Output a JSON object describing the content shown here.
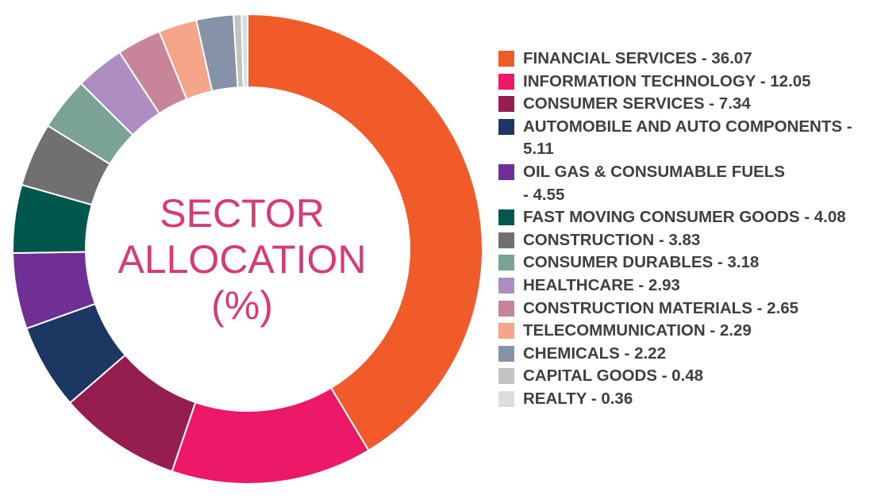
{
  "chart_data": {
    "type": "pie",
    "variant": "donut",
    "title_lines": [
      "SECTOR",
      "ALLOCATION",
      "(%)"
    ],
    "legend_position": "right",
    "slices": [
      {
        "label": "FINANCIAL SERVICES - 36.07",
        "name": "FINANCIAL SERVICES",
        "value": 36.07,
        "color": "#f15a29"
      },
      {
        "label": "INFORMATION TECHNOLOGY - 12.05",
        "name": "INFORMATION TECHNOLOGY",
        "value": 12.05,
        "color": "#ec1868"
      },
      {
        "label": "CONSUMER SERVICES - 7.34",
        "name": "CONSUMER SERVICES",
        "value": 7.34,
        "color": "#951d4f"
      },
      {
        "label": "AUTOMOBILE AND AUTO COMPONENTS - 5.11",
        "name": "AUTOMOBILE AND AUTO COMPONENTS",
        "value": 5.11,
        "color": "#1b3762"
      },
      {
        "label": "OIL GAS & CONSUMABLE FUELS\n- 4.55",
        "name": "OIL GAS & CONSUMABLE FUELS",
        "value": 4.55,
        "color": "#702f94"
      },
      {
        "label": "FAST MOVING CONSUMER GOODS - 4.08",
        "name": "FAST MOVING CONSUMER GOODS",
        "value": 4.08,
        "color": "#00574b"
      },
      {
        "label": "CONSTRUCTION - 3.83",
        "name": "CONSTRUCTION",
        "value": 3.83,
        "color": "#707070"
      },
      {
        "label": "CONSUMER DURABLES - 3.18",
        "name": "CONSUMER DURABLES",
        "value": 3.18,
        "color": "#7aa396"
      },
      {
        "label": "HEALTHCARE - 2.93",
        "name": "HEALTHCARE",
        "value": 2.93,
        "color": "#ae8ec2"
      },
      {
        "label": "CONSTRUCTION MATERIALS - 2.65",
        "name": "CONSTRUCTION MATERIALS",
        "value": 2.65,
        "color": "#c88499"
      },
      {
        "label": "TELECOMMUNICATION - 2.29",
        "name": "TELECOMMUNICATION",
        "value": 2.29,
        "color": "#f6a589"
      },
      {
        "label": "CHEMICALS - 2.22",
        "name": "CHEMICALS",
        "value": 2.22,
        "color": "#8592a8"
      },
      {
        "label": "CAPITAL GOODS - 0.48",
        "name": "CAPITAL GOODS",
        "value": 0.48,
        "color": "#c2c2c2"
      },
      {
        "label": "REALTY - 0.36",
        "name": "REALTY",
        "value": 0.36,
        "color": "#dcdcdc"
      }
    ]
  }
}
